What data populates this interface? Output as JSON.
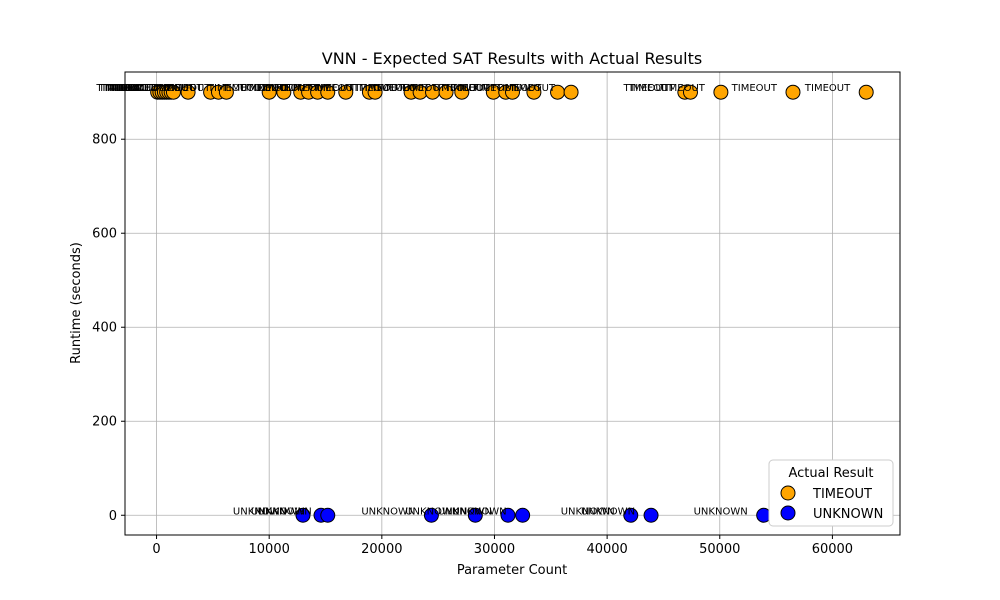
{
  "chart_data": {
    "type": "scatter",
    "title": "VNN - Expected SAT Results with Actual Results",
    "xlabel": "Parameter Count",
    "ylabel": "Runtime (seconds)",
    "xlim": [
      -2800,
      66000
    ],
    "ylim": [
      -42,
      943
    ],
    "x_ticks": [
      0,
      10000,
      20000,
      30000,
      40000,
      50000,
      60000
    ],
    "y_ticks": [
      0,
      200,
      400,
      600,
      800
    ],
    "grid": true,
    "legend": {
      "title": "Actual Result",
      "position": "bottom-right"
    },
    "series": [
      {
        "name": "TIMEOUT",
        "color": "#FFA500",
        "point_label": "TIMEOUT",
        "points": [
          [
            100,
            900
          ],
          [
            300,
            900
          ],
          [
            500,
            900
          ],
          [
            700,
            900
          ],
          [
            900,
            900
          ],
          [
            1100,
            900
          ],
          [
            1300,
            900
          ],
          [
            1500,
            900
          ],
          [
            2800,
            900
          ],
          [
            4800,
            900
          ],
          [
            5500,
            900
          ],
          [
            6200,
            900
          ],
          [
            10000,
            900
          ],
          [
            11300,
            900
          ],
          [
            12800,
            900
          ],
          [
            13500,
            900
          ],
          [
            14300,
            900
          ],
          [
            15200,
            900
          ],
          [
            16800,
            900
          ],
          [
            18900,
            900
          ],
          [
            19400,
            900
          ],
          [
            22600,
            900
          ],
          [
            23400,
            900
          ],
          [
            24500,
            900
          ],
          [
            25700,
            900
          ],
          [
            27100,
            900
          ],
          [
            29900,
            900
          ],
          [
            31000,
            900
          ],
          [
            31600,
            900
          ],
          [
            33500,
            900
          ],
          [
            35600,
            900
          ],
          [
            36800,
            900
          ],
          [
            46900,
            900
          ],
          [
            47400,
            900
          ],
          [
            50100,
            900
          ],
          [
            56500,
            900
          ],
          [
            63000,
            900
          ]
        ]
      },
      {
        "name": "UNKNOWN",
        "color": "#0000FF",
        "point_label": "UNKNOWN",
        "points": [
          [
            13000,
            0
          ],
          [
            14600,
            0
          ],
          [
            15200,
            0
          ],
          [
            24400,
            0
          ],
          [
            28300,
            0
          ],
          [
            31200,
            0
          ],
          [
            32500,
            0
          ],
          [
            42100,
            0
          ],
          [
            43900,
            0
          ],
          [
            53900,
            0
          ]
        ]
      }
    ]
  }
}
